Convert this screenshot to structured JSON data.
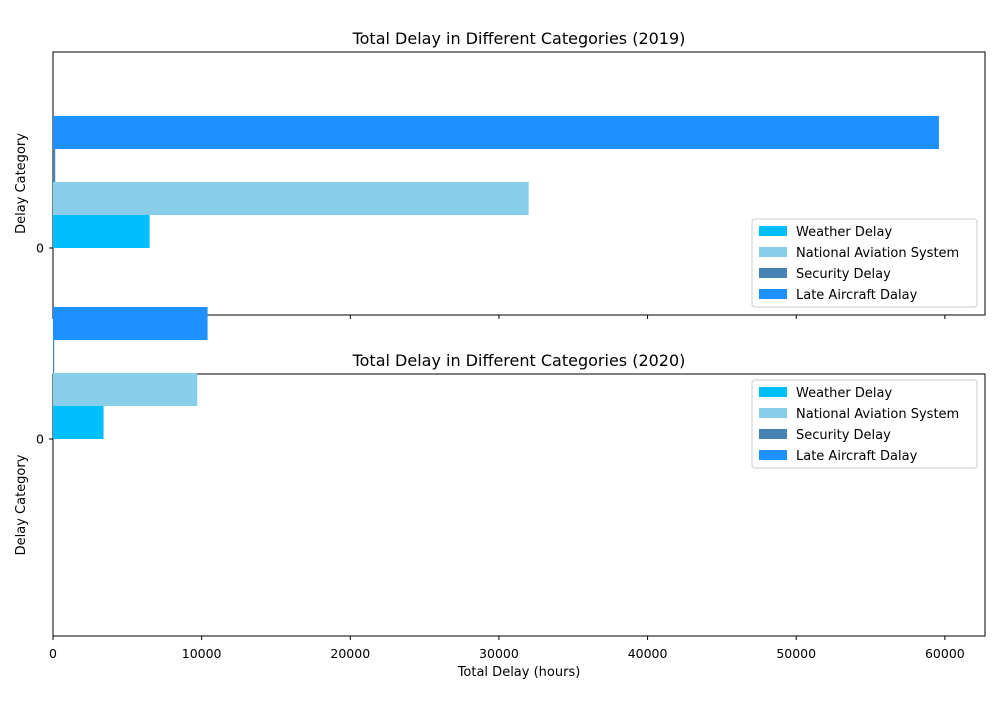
{
  "chart_data": [
    {
      "type": "bar",
      "orientation": "horizontal",
      "title": "Total Delay in Different Categories (2019)",
      "xlabel": "",
      "ylabel": "Delay Category",
      "xlim": [
        0,
        62700
      ],
      "xticks": [
        0,
        10000,
        20000,
        30000,
        40000,
        50000,
        60000
      ],
      "xtick_labels_shown": false,
      "ytick_labels": [
        "0"
      ],
      "grid": false,
      "legend_position": "lower-right",
      "series": [
        {
          "name": "Weather Delay",
          "color": "#00BFFF",
          "values": [
            6500
          ]
        },
        {
          "name": "National Aviation System",
          "color": "#87CEEB",
          "values": [
            32000
          ]
        },
        {
          "name": "Security Delay",
          "color": "#4682B4",
          "values": [
            150
          ]
        },
        {
          "name": "Late Aircraft Dalay",
          "color": "#1E90FF",
          "values": [
            59600
          ]
        }
      ]
    },
    {
      "type": "bar",
      "orientation": "horizontal",
      "title": "Total Delay in Different Categories (2020)",
      "xlabel": "Total Delay (hours)",
      "ylabel": "Delay Category",
      "xlim": [
        0,
        62700
      ],
      "xticks": [
        0,
        10000,
        20000,
        30000,
        40000,
        50000,
        60000
      ],
      "xtick_labels": [
        "0",
        "10000",
        "20000",
        "30000",
        "40000",
        "50000",
        "60000"
      ],
      "xtick_labels_shown": true,
      "ytick_labels": [
        "0"
      ],
      "grid": false,
      "legend_position": "upper-right",
      "series": [
        {
          "name": "Weather Delay",
          "color": "#00BFFF",
          "values": [
            3400
          ]
        },
        {
          "name": "National Aviation System",
          "color": "#87CEEB",
          "values": [
            9700
          ]
        },
        {
          "name": "Security Delay",
          "color": "#4682B4",
          "values": [
            80
          ]
        },
        {
          "name": "Late Aircraft Dalay",
          "color": "#1E90FF",
          "values": [
            10400
          ]
        }
      ]
    }
  ]
}
